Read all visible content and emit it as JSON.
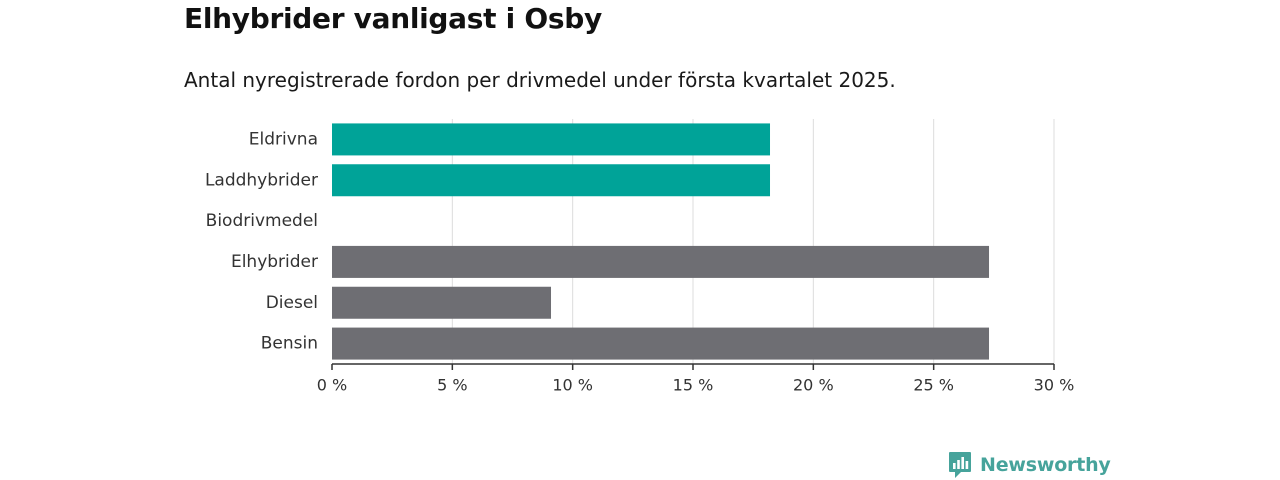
{
  "header": {
    "title": "Elhybrider vanligast i Osby",
    "subtitle": "Antal nyregistrerade fordon per drivmedel under första kvartalet 2025."
  },
  "chart_data": {
    "type": "bar",
    "orientation": "horizontal",
    "title": "Elhybrider vanligast i Osby",
    "subtitle": "Antal nyregistrerade fordon per drivmedel under första kvartalet 2025.",
    "xlabel": "",
    "ylabel": "",
    "categories": [
      "Eldrivna",
      "Laddhybrider",
      "Biodrivmedel",
      "Elhybrider",
      "Diesel",
      "Bensin"
    ],
    "values": [
      18.2,
      18.2,
      0,
      27.3,
      9.1,
      27.3
    ],
    "bar_colors": [
      "#00a398",
      "#00a398",
      "#00a398",
      "#6e6e73",
      "#6e6e73",
      "#6e6e73"
    ],
    "xlim": [
      0,
      30
    ],
    "x_ticks": [
      0,
      5,
      10,
      15,
      20,
      25,
      30
    ],
    "x_tick_labels": [
      "0 %",
      "5 %",
      "10 %",
      "15 %",
      "20 %",
      "25 %",
      "30 %"
    ],
    "grid": "vertical",
    "legend": "none"
  },
  "brand": {
    "name": "Newsworthy",
    "icon": "newsworthy-logo-icon",
    "color": "#46a39b"
  }
}
